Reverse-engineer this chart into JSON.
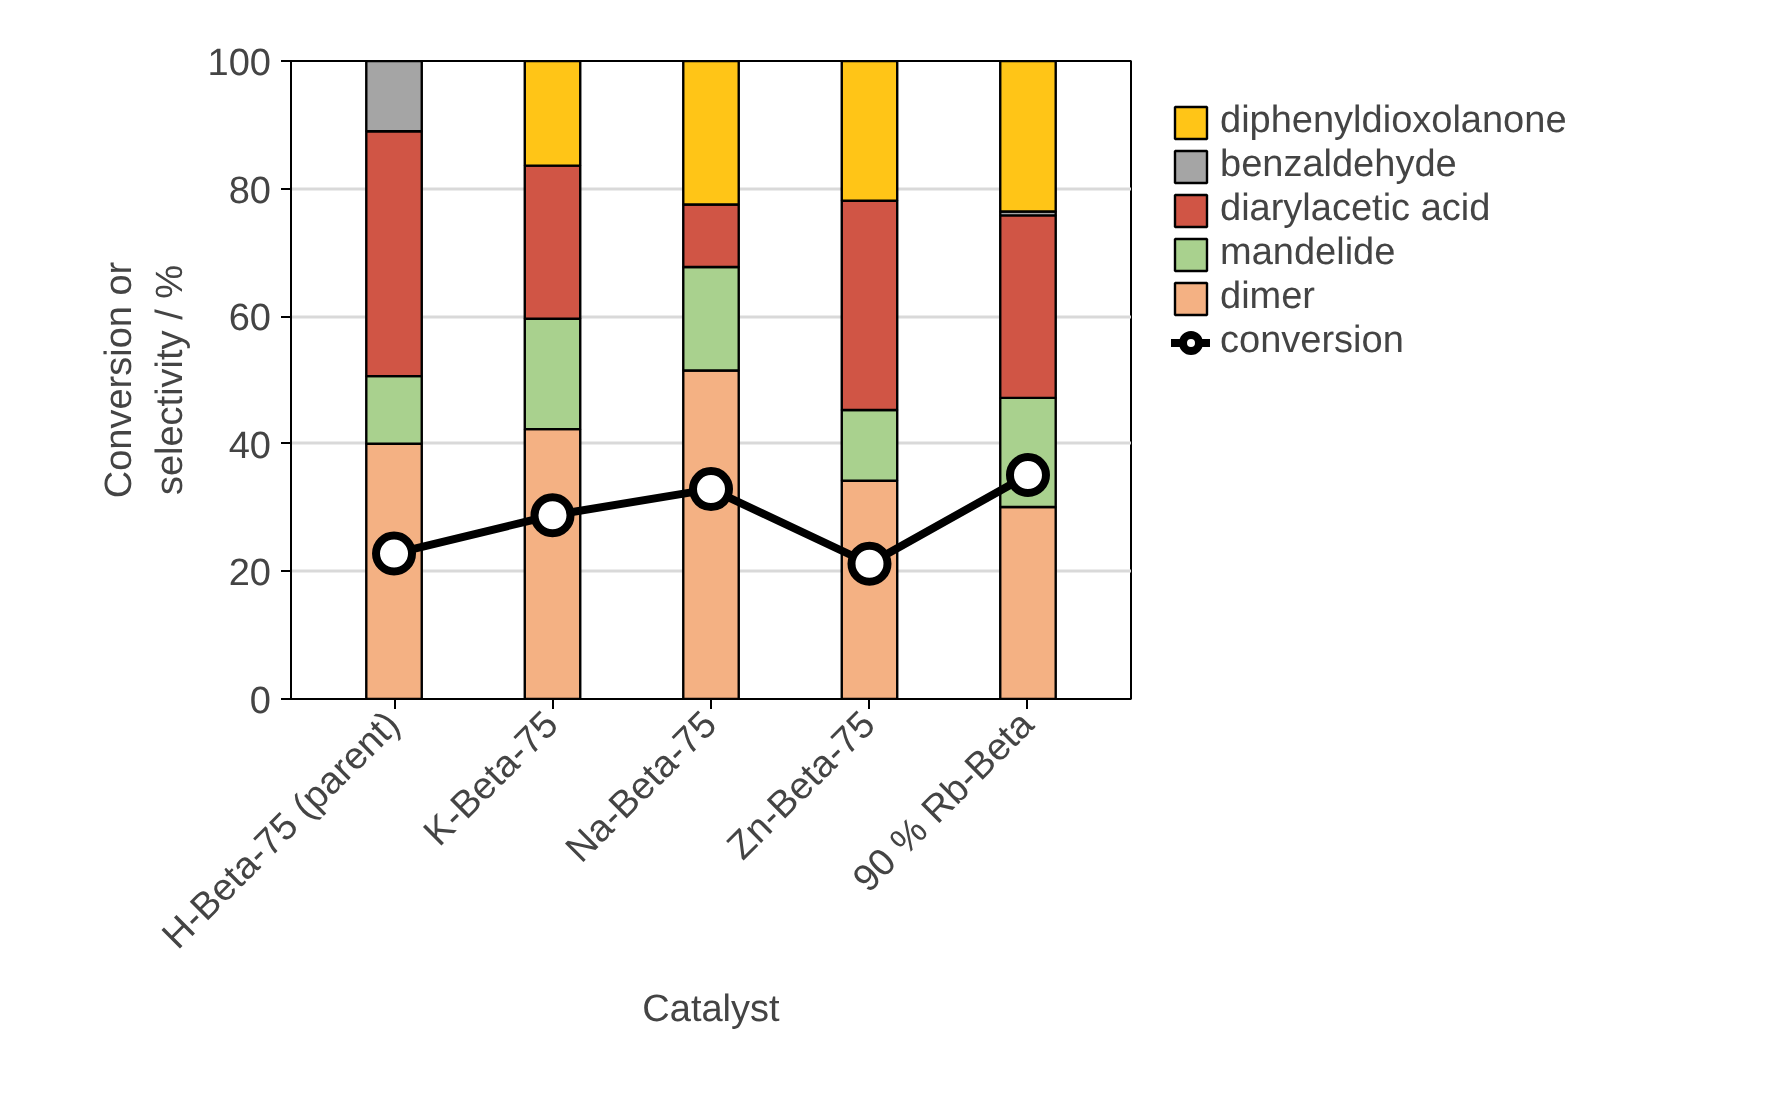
{
  "chart_data": {
    "type": "bar",
    "stacked": true,
    "xlabel": "Catalyst",
    "ylabel": "Conversion or\nselectivity / %",
    "categories": [
      "H-Beta-75 (parent)",
      "K-Beta-75",
      "Na-Beta-75",
      "Zn-Beta-75",
      "90 % Rb-Beta"
    ],
    "series": [
      {
        "name": "dimer",
        "color": "#f4b183",
        "values": [
          40,
          42.3,
          51.5,
          34.2,
          30.1
        ]
      },
      {
        "name": "mandelide",
        "color": "#a9d18e",
        "values": [
          10.6,
          17.3,
          16.2,
          11.1,
          17.1
        ]
      },
      {
        "name": "diarylacetic acid",
        "color": "#d05545",
        "values": [
          38.4,
          24,
          9.8,
          32.8,
          28.6
        ]
      },
      {
        "name": "benzaldehyde",
        "color": "#a5a5a5",
        "values": [
          11,
          0,
          0,
          0,
          0.6
        ]
      },
      {
        "name": "diphenyldioxolanone",
        "color": "#ffc517",
        "values": [
          0,
          16.4,
          22.5,
          21.9,
          23.6
        ]
      },
      {
        "name": "conversion",
        "type": "line",
        "color": "#000000",
        "marker": "circle",
        "values": [
          22.8,
          28.8,
          32.9,
          21.2,
          35.1
        ]
      }
    ],
    "ylim": [
      0,
      100
    ],
    "yticks": [
      0,
      20,
      40,
      60,
      80,
      100
    ],
    "grid": "y",
    "legend": "right"
  }
}
